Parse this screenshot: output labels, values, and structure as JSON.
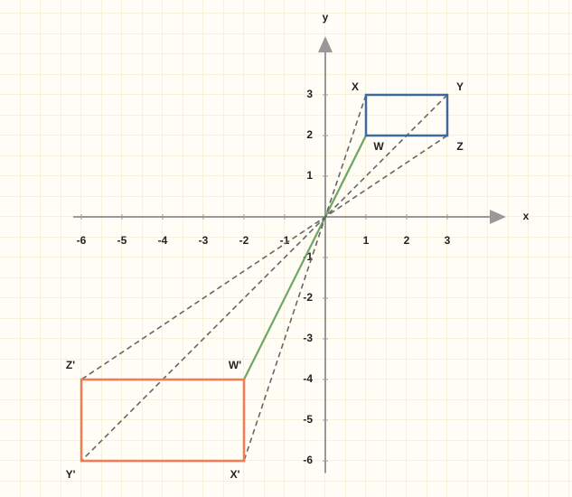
{
  "chart_data": {
    "type": "coordinate-plane",
    "x_label": "x",
    "y_label": "y",
    "xlim": [
      -6.2,
      4.4
    ],
    "ylim": [
      -6.3,
      4.4
    ],
    "xticks": [
      -6,
      -5,
      -4,
      -3,
      -2,
      -1,
      1,
      2,
      3
    ],
    "yticks": [
      -6,
      -5,
      -4,
      -3,
      -2,
      -1,
      1,
      2,
      3
    ],
    "figures": [
      {
        "color": "#3d6a9a",
        "points": [
          {
            "label": "W",
            "x": 1,
            "y": 2
          },
          {
            "label": "X",
            "x": 1,
            "y": 3
          },
          {
            "label": "Y",
            "x": 3,
            "y": 3
          },
          {
            "label": "Z",
            "x": 3,
            "y": 2
          }
        ]
      },
      {
        "color": "#f47b50",
        "points": [
          {
            "label": "W'",
            "x": -2,
            "y": -4
          },
          {
            "label": "X'",
            "x": -2,
            "y": -6
          },
          {
            "label": "Y'",
            "x": -6,
            "y": -6
          },
          {
            "label": "Z'",
            "x": -6,
            "y": -4
          }
        ]
      }
    ],
    "connectors": [
      {
        "color": "#6aa860",
        "dashed": false
      },
      {
        "color": "#666666",
        "dashed": true
      },
      {
        "color": "#666666",
        "dashed": true
      },
      {
        "color": "#666666",
        "dashed": true
      }
    ]
  }
}
